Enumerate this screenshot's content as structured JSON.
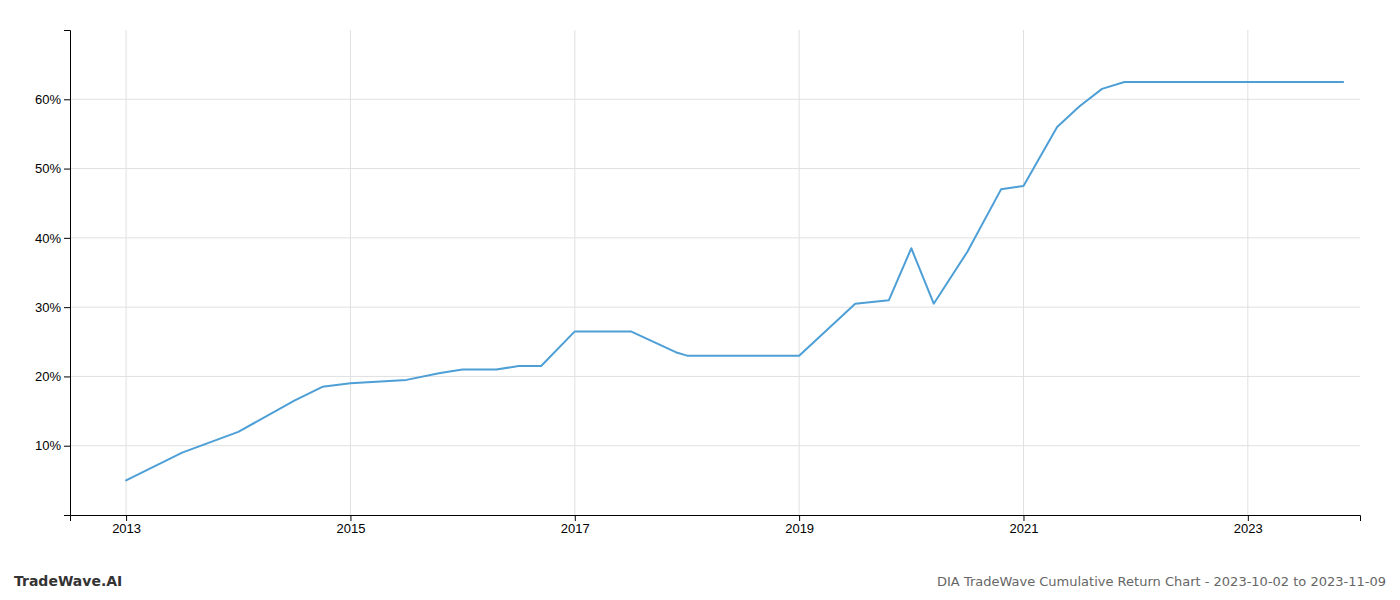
{
  "chart_data": {
    "type": "line",
    "annotations": [
      "TradeWave.AI",
      "DIA TradeWave Cumulative Return Chart - 2023-10-02 to 2023-11-09"
    ],
    "x": [
      2013.0,
      2013.5,
      2014.0,
      2014.5,
      2014.75,
      2015.0,
      2015.5,
      2015.8,
      2016.0,
      2016.3,
      2016.5,
      2016.7,
      2017.0,
      2017.1,
      2017.3,
      2017.5,
      2017.9,
      2018.0,
      2018.5,
      2018.7,
      2019.0,
      2019.5,
      2019.8,
      2020.0,
      2020.2,
      2020.5,
      2020.8,
      2021.0,
      2021.3,
      2021.5,
      2021.7,
      2021.9,
      2022.0,
      2022.5,
      2022.9,
      2023.0,
      2023.5,
      2023.85
    ],
    "values": [
      5.0,
      9.0,
      12.0,
      16.5,
      18.5,
      19.0,
      19.5,
      20.5,
      21.0,
      21.0,
      21.5,
      21.5,
      26.5,
      26.5,
      26.5,
      26.5,
      23.5,
      23.0,
      23.0,
      23.0,
      23.0,
      30.5,
      31.0,
      38.5,
      30.5,
      38.0,
      47.0,
      47.5,
      56.0,
      59.0,
      61.5,
      62.5,
      62.5,
      62.5,
      62.5,
      62.5,
      62.5,
      62.5
    ],
    "color": "#4d9fd6",
    "xlim": [
      2012.5,
      2024.0
    ],
    "xticks": [
      2013,
      2015,
      2017,
      2019,
      2021,
      2023
    ],
    "ylim": [
      0,
      70
    ],
    "yticks": [
      {
        "value": 10,
        "label": "10%"
      },
      {
        "value": 20,
        "label": "20%"
      },
      {
        "value": 30,
        "label": "30%"
      },
      {
        "value": 40,
        "label": "40%"
      },
      {
        "value": 50,
        "label": "50%"
      },
      {
        "value": 60,
        "label": "60%"
      }
    ],
    "grid": true
  }
}
